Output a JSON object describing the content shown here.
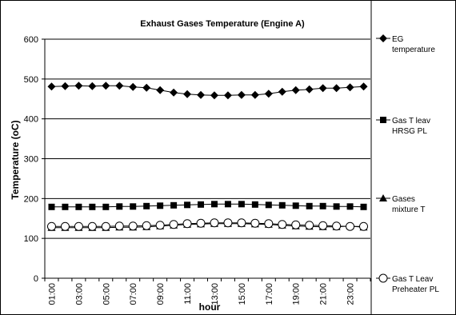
{
  "chart_data": {
    "type": "line",
    "title": "Exhaust Gases Temperature (Engine A)",
    "xlabel": "hour",
    "ylabel": "Temperature (oC)",
    "ylim": [
      0,
      600
    ],
    "yticks": [
      0,
      100,
      200,
      300,
      400,
      500,
      600
    ],
    "grid": "horizontal",
    "legend_position": "right",
    "x": [
      "01:00",
      "02:00",
      "03:00",
      "04:00",
      "05:00",
      "06:00",
      "07:00",
      "08:00",
      "09:00",
      "10:00",
      "11:00",
      "12:00",
      "13:00",
      "14:00",
      "15:00",
      "16:00",
      "17:00",
      "18:00",
      "19:00",
      "20:00",
      "21:00",
      "22:00",
      "23:00",
      "24:00"
    ],
    "xtick_labels": [
      "01:00",
      "03:00",
      "05:00",
      "07:00",
      "09:00",
      "11:00",
      "13:00",
      "15:00",
      "17:00",
      "19:00",
      "21:00",
      "23:00"
    ],
    "series": [
      {
        "name_lines": [
          "EG",
          "temperature"
        ],
        "marker": "diamond",
        "values": [
          481,
          482,
          483,
          482,
          483,
          483,
          480,
          478,
          472,
          466,
          462,
          460,
          459,
          459,
          460,
          460,
          463,
          468,
          472,
          474,
          477,
          477,
          479,
          481
        ]
      },
      {
        "name_lines": [
          "Gas T leav",
          "HRSG PL"
        ],
        "marker": "square",
        "values": [
          179,
          179,
          179,
          179,
          179,
          180,
          180,
          181,
          182,
          183,
          184,
          185,
          186,
          186,
          186,
          185,
          184,
          183,
          182,
          181,
          181,
          180,
          180,
          179
        ]
      },
      {
        "name_lines": [
          "Gases",
          "mixture T"
        ],
        "marker": "triangle",
        "values": [
          127,
          127,
          127,
          127,
          127,
          128,
          128,
          129,
          131,
          133,
          135,
          136,
          137,
          137,
          137,
          136,
          135,
          133,
          131,
          130,
          129,
          129,
          131,
          128
        ]
      },
      {
        "name_lines": [
          "Gas T Leav",
          "Preheater PL"
        ],
        "marker": "circle",
        "values": [
          130,
          130,
          130,
          130,
          130,
          131,
          131,
          132,
          133,
          135,
          137,
          138,
          139,
          139,
          139,
          138,
          137,
          135,
          134,
          133,
          132,
          131,
          130,
          130
        ]
      }
    ]
  }
}
